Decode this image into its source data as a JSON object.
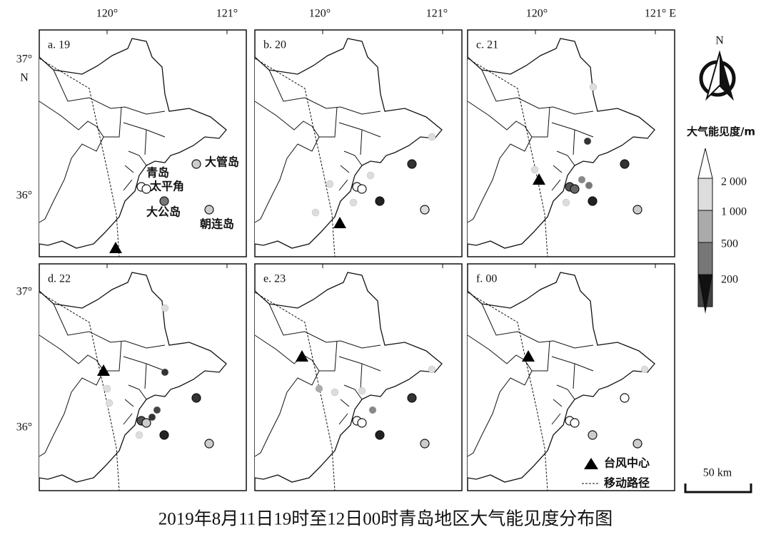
{
  "axes": {
    "top": [
      "120°",
      "121°",
      "120°",
      "121°",
      "120°",
      "121° E"
    ],
    "left": [
      "37°",
      "N",
      "36°",
      "37°",
      "36°"
    ]
  },
  "panels": [
    "a. 19",
    "b. 20",
    "c. 21",
    "d. 22",
    "e. 23",
    "f. 00"
  ],
  "places": [
    "青岛",
    "太平角",
    "大公岛",
    "大管岛",
    "朝连岛"
  ],
  "north": "N",
  "legend": {
    "title": "大气能见度/m",
    "levels": [
      "2 000",
      "1 000",
      "500",
      "200"
    ],
    "typhoon": "台风中心",
    "track": "移动路径"
  },
  "scale": "50 km",
  "caption": "2019年8月11日19时至12日00时青岛地区大气能见度分布图"
}
